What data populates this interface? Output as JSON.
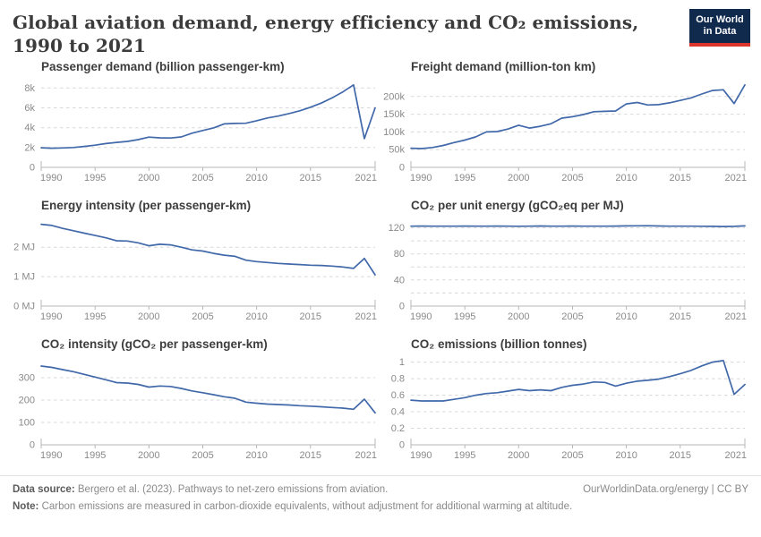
{
  "header": {
    "title": "Global aviation demand, energy efficiency and CO₂ emissions, 1990 to 2021",
    "logo_line1": "Our World",
    "logo_line2": "in Data"
  },
  "colors": {
    "line": "#4168a9",
    "grid": "#d8d8d8",
    "axis": "#b7b7b7",
    "logo_navy": "#102a4d",
    "logo_red": "#dc352b",
    "title_text": "#3b3b3b",
    "tick_text": "#8a8a8a"
  },
  "years": [
    1990,
    1991,
    1992,
    1993,
    1994,
    1995,
    1996,
    1997,
    1998,
    1999,
    2000,
    2001,
    2002,
    2003,
    2004,
    2005,
    2006,
    2007,
    2008,
    2009,
    2010,
    2011,
    2012,
    2013,
    2014,
    2015,
    2016,
    2017,
    2018,
    2019,
    2020,
    2021
  ],
  "chart_data": [
    {
      "type": "line",
      "title": "Passenger demand (billion passenger-km)",
      "col": 1,
      "ylim": [
        0,
        8750
      ],
      "xticks": [
        1990,
        1995,
        2000,
        2005,
        2010,
        2015,
        2021
      ],
      "yticks": [
        {
          "v": 0,
          "label": "0"
        },
        {
          "v": 2000,
          "label": "2k"
        },
        {
          "v": 4000,
          "label": "4k"
        },
        {
          "v": 6000,
          "label": "6k"
        },
        {
          "v": 8000,
          "label": "8k"
        }
      ],
      "values": [
        1980,
        1930,
        1960,
        2000,
        2110,
        2240,
        2400,
        2520,
        2620,
        2800,
        3050,
        2980,
        2960,
        3070,
        3450,
        3720,
        3980,
        4380,
        4430,
        4450,
        4700,
        4980,
        5170,
        5420,
        5700,
        6060,
        6480,
        7000,
        7600,
        8320,
        2900,
        6000
      ]
    },
    {
      "type": "line",
      "title": "Freight demand (million-ton km)",
      "col": 2,
      "ylim": [
        0,
        245000
      ],
      "xticks": [
        1990,
        1995,
        2000,
        2005,
        2010,
        2015,
        2021
      ],
      "yticks": [
        {
          "v": 0,
          "label": "0"
        },
        {
          "v": 50000,
          "label": "50k"
        },
        {
          "v": 100000,
          "label": "100k"
        },
        {
          "v": 150000,
          "label": "150k"
        },
        {
          "v": 200000,
          "label": "200k"
        }
      ],
      "values": [
        54000,
        53000,
        56000,
        62000,
        70000,
        77000,
        86000,
        100000,
        101000,
        108000,
        119000,
        111000,
        116000,
        123000,
        139000,
        143000,
        149000,
        157000,
        158000,
        159000,
        179000,
        183000,
        176000,
        177000,
        182000,
        189000,
        196000,
        207000,
        217000,
        219000,
        180000,
        233000
      ]
    },
    {
      "type": "line",
      "title": "Energy intensity (per passenger-km)",
      "col": 1,
      "ylim": [
        0,
        2.95
      ],
      "xticks": [
        1990,
        1995,
        2000,
        2005,
        2010,
        2015,
        2021
      ],
      "yticks": [
        {
          "v": 0,
          "label": "0 MJ"
        },
        {
          "v": 1,
          "label": "1 MJ"
        },
        {
          "v": 2,
          "label": "2 MJ"
        }
      ],
      "values": [
        2.78,
        2.74,
        2.64,
        2.56,
        2.48,
        2.4,
        2.32,
        2.22,
        2.21,
        2.15,
        2.05,
        2.1,
        2.08,
        2.0,
        1.91,
        1.87,
        1.79,
        1.73,
        1.69,
        1.56,
        1.51,
        1.48,
        1.45,
        1.43,
        1.41,
        1.39,
        1.38,
        1.36,
        1.33,
        1.28,
        1.62,
        1.06
      ]
    },
    {
      "type": "line",
      "title": "CO₂ per unit energy (gCO₂eq per MJ)",
      "col": 2,
      "ylim": [
        0,
        133
      ],
      "xticks": [
        1990,
        1995,
        2000,
        2005,
        2010,
        2015,
        2021
      ],
      "yticks": [
        {
          "v": 0,
          "label": "0"
        },
        {
          "v": 20,
          "label": ""
        },
        {
          "v": 40,
          "label": "40"
        },
        {
          "v": 60,
          "label": ""
        },
        {
          "v": 80,
          "label": "80"
        },
        {
          "v": 100,
          "label": ""
        },
        {
          "v": 120,
          "label": "120"
        }
      ],
      "values": [
        122.5,
        122.6,
        122.5,
        122.4,
        122.5,
        122.6,
        122.4,
        122.5,
        122.6,
        122.5,
        122.3,
        122.5,
        122.7,
        122.5,
        122.4,
        122.6,
        122.5,
        122.4,
        122.5,
        122.6,
        122.8,
        123.0,
        123.1,
        122.7,
        122.5,
        122.4,
        122.5,
        122.3,
        122.1,
        121.9,
        122.2,
        122.8
      ]
    },
    {
      "type": "line",
      "title": "CO₂ intensity (gCO₂ per passenger-km)",
      "col": 1,
      "ylim": [
        0,
        388
      ],
      "xticks": [
        1990,
        1995,
        2000,
        2005,
        2010,
        2015,
        2021
      ],
      "yticks": [
        {
          "v": 0,
          "label": "0"
        },
        {
          "v": 100,
          "label": "100"
        },
        {
          "v": 200,
          "label": "200"
        },
        {
          "v": 300,
          "label": "300"
        }
      ],
      "values": [
        352,
        346,
        336,
        327,
        315,
        303,
        291,
        278,
        276,
        270,
        258,
        263,
        261,
        252,
        241,
        233,
        224,
        215,
        208,
        191,
        186,
        182,
        180,
        178,
        175,
        173,
        170,
        167,
        164,
        159,
        204,
        143
      ]
    },
    {
      "type": "line",
      "title": "CO₂ emissions (billion tonnes)",
      "col": 2,
      "ylim": [
        0,
        1.05
      ],
      "xticks": [
        1990,
        1995,
        2000,
        2005,
        2010,
        2015,
        2021
      ],
      "yticks": [
        {
          "v": 0,
          "label": "0"
        },
        {
          "v": 0.2,
          "label": "0.2"
        },
        {
          "v": 0.4,
          "label": "0.4"
        },
        {
          "v": 0.6,
          "label": "0.6"
        },
        {
          "v": 0.8,
          "label": "0.8"
        },
        {
          "v": 1,
          "label": "1"
        }
      ],
      "values": [
        0.54,
        0.53,
        0.53,
        0.53,
        0.55,
        0.57,
        0.6,
        0.62,
        0.63,
        0.65,
        0.67,
        0.655,
        0.665,
        0.655,
        0.695,
        0.72,
        0.735,
        0.76,
        0.755,
        0.71,
        0.745,
        0.77,
        0.78,
        0.795,
        0.825,
        0.86,
        0.9,
        0.955,
        1.0,
        1.02,
        0.61,
        0.73
      ]
    }
  ],
  "footer": {
    "source_label": "Data source:",
    "source_text": "Bergero et al. (2023). Pathways to net-zero emissions from aviation.",
    "url": "OurWorldinData.org/energy | CC BY",
    "note_label": "Note:",
    "note_text": "Carbon emissions are measured in carbon-dioxide equivalents, without adjustment for additional warming at altitude."
  }
}
